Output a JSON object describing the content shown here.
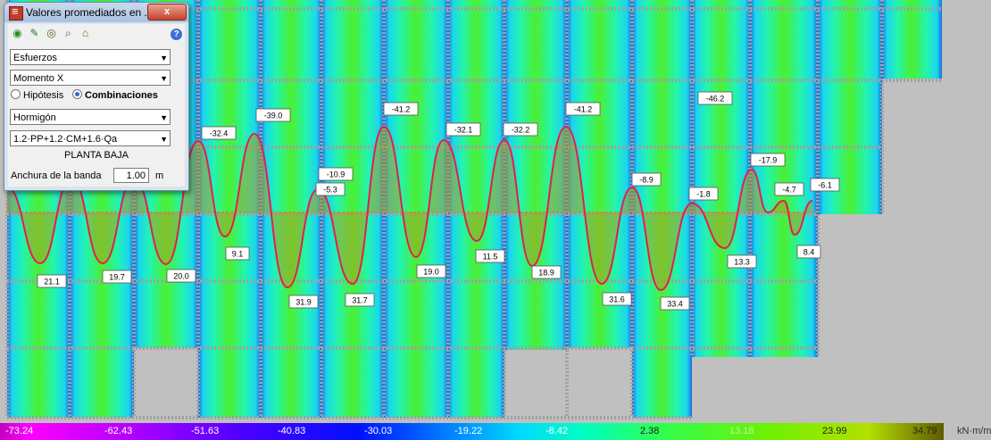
{
  "dialog": {
    "title": "Valores promediados en ...",
    "close_label": "x",
    "help_label": "?",
    "toolbar_icons": [
      "record-icon",
      "chart-icon",
      "search-icon",
      "zoom-icon",
      "house-icon"
    ],
    "category_select": "Esfuerzos",
    "quantity_select": "Momento X",
    "radio_hypothesis": "Hipótesis",
    "radio_combinations": "Combinaciones",
    "radio_selected": "Combinaciones",
    "material_select": "Hormigón",
    "combination_select": "1.2·PP+1.2·CM+1.6·Qa",
    "floor_label": "PLANTA BAJA",
    "band_width_label": "Anchura de la banda",
    "band_width_value": "1.00",
    "band_width_unit": "m"
  },
  "moment_labels": {
    "negative": [
      "-32.4",
      "-39.0",
      "-10.9",
      "-5.3",
      "-41.2",
      "-32.1",
      "-32.2",
      "-41.2",
      "-8.9",
      "-1.8",
      "-46.2",
      "-17.9",
      "-4.7",
      "-6.1"
    ],
    "positive": [
      "21.1",
      "19.7",
      "20.0",
      "9.1",
      "31.9",
      "31.7",
      "19.0",
      "11.5",
      "18.9",
      "31.6",
      "33.4",
      "13.3",
      "8.4"
    ]
  },
  "legend": {
    "values": [
      "-73.24",
      "-62.43",
      "-51.63",
      "-40.83",
      "-30.03",
      "-19.22",
      "-8.42",
      "2.38",
      "13.18",
      "23.99",
      "34.79"
    ],
    "unit": "kN·m/m"
  },
  "colors": {
    "curve": "#e02050",
    "fill_positive": "#a6a020",
    "panel_bg": "#f0f0f0"
  }
}
